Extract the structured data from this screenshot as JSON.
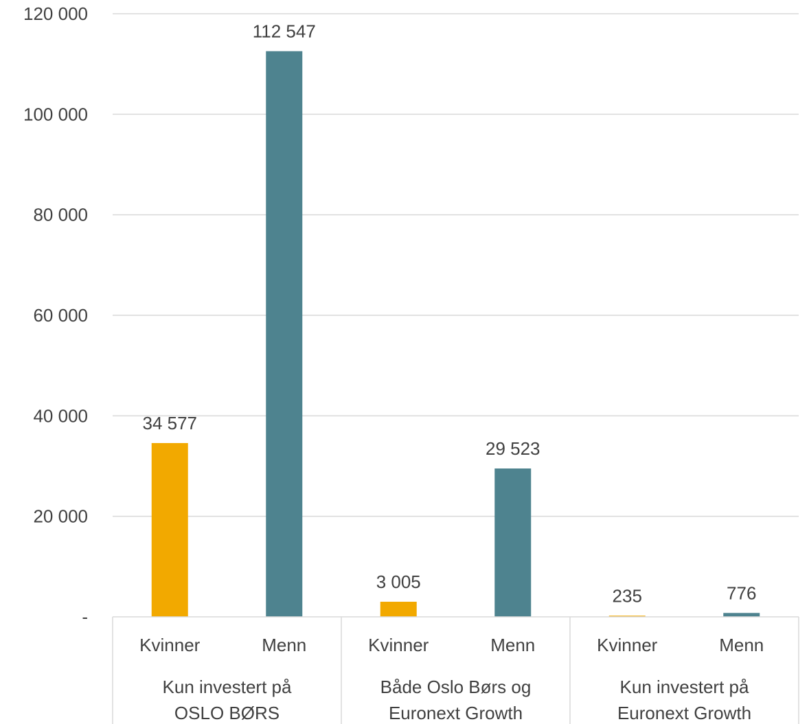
{
  "chart_data": {
    "type": "bar",
    "groups": [
      {
        "label_lines": [
          "Kun investert på",
          "OSLO BØRS"
        ],
        "bars": [
          {
            "label": "Kvinner",
            "value": 34577,
            "display": "34 577",
            "color": "#f2a900"
          },
          {
            "label": "Menn",
            "value": 112547,
            "display": "112 547",
            "color": "#4e838f"
          }
        ]
      },
      {
        "label_lines": [
          "Både Oslo Børs og",
          "Euronext Growth"
        ],
        "bars": [
          {
            "label": "Kvinner",
            "value": 3005,
            "display": "3 005",
            "color": "#f2a900"
          },
          {
            "label": "Menn",
            "value": 29523,
            "display": "29 523",
            "color": "#4e838f"
          }
        ]
      },
      {
        "label_lines": [
          "Kun investert på",
          "Euronext Growth"
        ],
        "bars": [
          {
            "label": "Kvinner",
            "value": 235,
            "display": "235",
            "color": "#f2a900"
          },
          {
            "label": "Menn",
            "value": 776,
            "display": "776",
            "color": "#4e838f"
          }
        ]
      }
    ],
    "ylim": [
      0,
      120000
    ],
    "yticks": [
      {
        "value": 0,
        "label": "-"
      },
      {
        "value": 20000,
        "label": "20 000"
      },
      {
        "value": 40000,
        "label": "40 000"
      },
      {
        "value": 60000,
        "label": "60 000"
      },
      {
        "value": 80000,
        "label": "80 000"
      },
      {
        "value": 100000,
        "label": "100 000"
      },
      {
        "value": 120000,
        "label": "120 000"
      }
    ],
    "grid": true,
    "legend": "none"
  }
}
